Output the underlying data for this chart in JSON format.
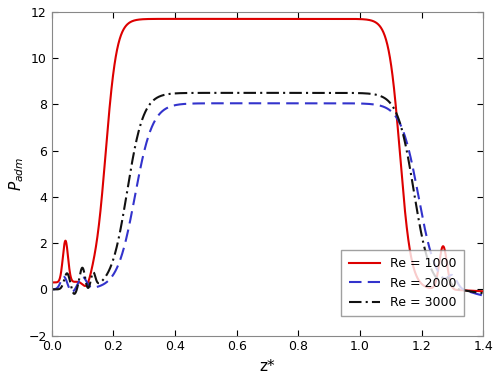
{
  "title": "",
  "xlabel": "z*",
  "ylabel": "$P_{adm}$",
  "xlim": [
    0.0,
    1.4
  ],
  "ylim": [
    -2,
    12
  ],
  "xticks": [
    0.0,
    0.2,
    0.4,
    0.6,
    0.8,
    1.0,
    1.2,
    1.4
  ],
  "yticks": [
    -2,
    0,
    2,
    4,
    6,
    8,
    10,
    12
  ],
  "legend": [
    {
      "label": "Re = 1000",
      "color": "#dd0000",
      "linestyle": "-"
    },
    {
      "label": "Re = 2000",
      "color": "#3333cc",
      "linestyle": "--"
    },
    {
      "label": "Re = 3000",
      "color": "#111111",
      "linestyle": "-."
    }
  ],
  "background_color": "#ffffff",
  "figsize": [
    5.0,
    3.81
  ],
  "dpi": 100
}
